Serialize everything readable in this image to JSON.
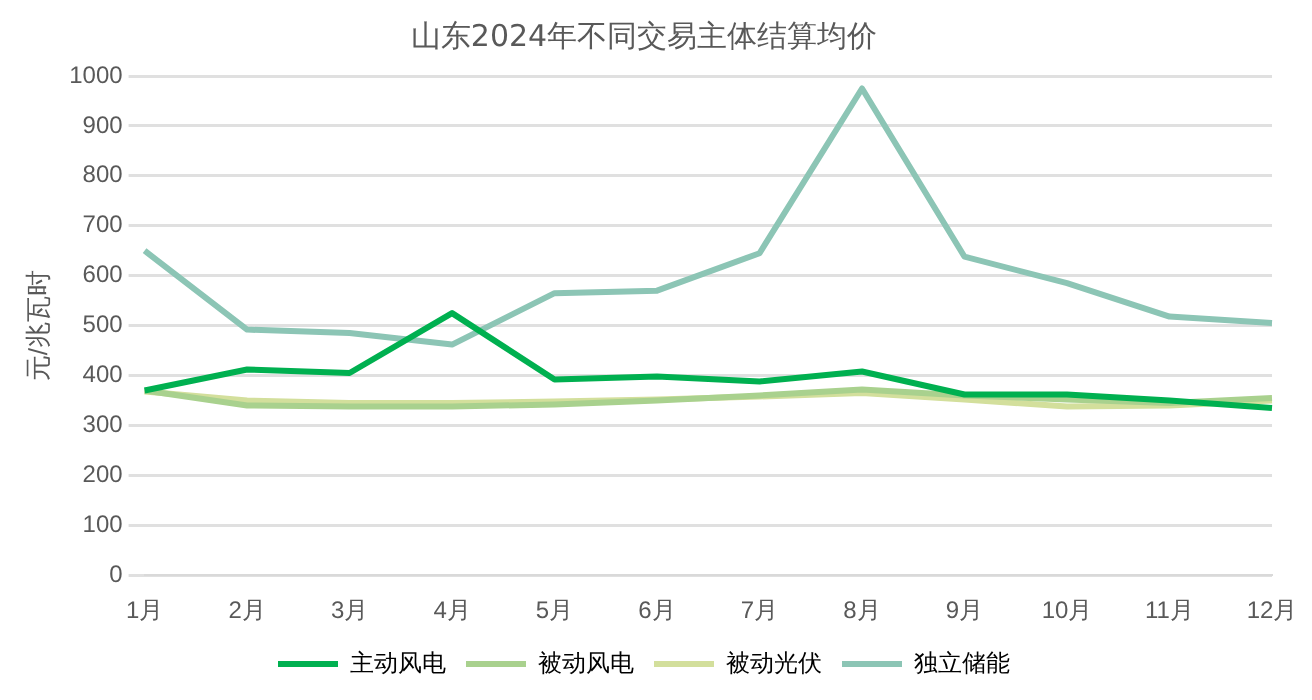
{
  "chart_data": {
    "type": "line",
    "title": "山东2024年不同交易主体结算均价",
    "ylabel": "元/兆瓦时",
    "categories": [
      "1月",
      "2月",
      "3月",
      "4月",
      "5月",
      "6月",
      "7月",
      "8月",
      "9月",
      "10月",
      "11月",
      "12月"
    ],
    "series": [
      {
        "name": "主动风电",
        "color": "#00b050",
        "values": [
          370,
          412,
          405,
          525,
          392,
          398,
          388,
          408,
          362,
          362,
          350,
          335
        ]
      },
      {
        "name": "被动风电",
        "color": "#a9d18e",
        "values": [
          370,
          340,
          338,
          338,
          342,
          350,
          360,
          372,
          360,
          352,
          345,
          355
        ]
      },
      {
        "name": "被动光伏",
        "color": "#d3df9c",
        "values": [
          368,
          350,
          345,
          345,
          348,
          352,
          358,
          365,
          352,
          338,
          340,
          350
        ]
      },
      {
        "name": "独立储能",
        "color": "#8cc5b5",
        "values": [
          650,
          492,
          485,
          462,
          565,
          570,
          645,
          975,
          638,
          585,
          518,
          505
        ]
      }
    ],
    "ylim": [
      0,
      1000
    ],
    "yticks": [
      0,
      100,
      200,
      300,
      400,
      500,
      600,
      700,
      800,
      900,
      1000
    ],
    "grid": "y",
    "legend": "bottom",
    "marker": "none",
    "line_style": "solid"
  }
}
